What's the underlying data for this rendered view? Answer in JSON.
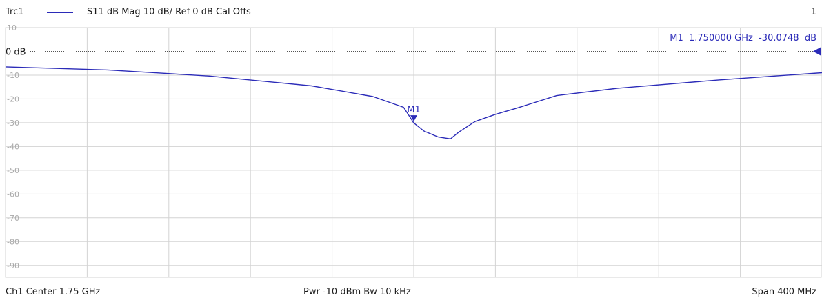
{
  "header": {
    "trace_name": "Trc1",
    "trace_desc": "S11  dB Mag  10 dB/ Ref 0 dB  Cal Offs",
    "channel_index": "1"
  },
  "footer": {
    "center": "Ch1  Center  1.75 GHz",
    "power_bw": "Pwr  -10 dBm  Bw  10 kHz",
    "span": "Span  400 MHz"
  },
  "colors": {
    "trace": "#2b2bb8",
    "grid": "#d3d3d3",
    "tick": "#a9a9a9"
  },
  "chart_data": {
    "type": "line",
    "title": "S11  dB Mag  10 dB/ Ref 0 dB  Cal Offs",
    "x_unit": "GHz",
    "xlim": [
      1.55,
      1.95
    ],
    "ylim": [
      -95,
      10
    ],
    "y_ticks": [
      10,
      -10,
      -20,
      -30,
      -40,
      -50,
      -60,
      -70,
      -80,
      -90
    ],
    "y_tick_labels": [
      "10",
      "-10",
      "-20",
      "-30",
      "-40",
      "-50",
      "-60",
      "-70",
      "-80",
      "-90"
    ],
    "reference_level": 0,
    "reference_label": "0 dB",
    "grid": true,
    "series": [
      {
        "name": "Trc1",
        "x": [
          1.55,
          1.6,
          1.65,
          1.7,
          1.73,
          1.745,
          1.75,
          1.755,
          1.762,
          1.768,
          1.772,
          1.78,
          1.79,
          1.8,
          1.82,
          1.85,
          1.9,
          1.95
        ],
        "y": [
          -6.5,
          -7.8,
          -10.4,
          -14.5,
          -19.0,
          -23.5,
          -30.1,
          -33.5,
          -36.0,
          -36.8,
          -34.0,
          -29.5,
          -26.5,
          -24.0,
          -18.6,
          -15.5,
          -12.0,
          -9.0
        ]
      }
    ],
    "markers": [
      {
        "label": "M1",
        "x": 1.75,
        "y": -30.0748,
        "readout": "M1  1.750000 GHz  -30.0748  dB"
      }
    ]
  }
}
